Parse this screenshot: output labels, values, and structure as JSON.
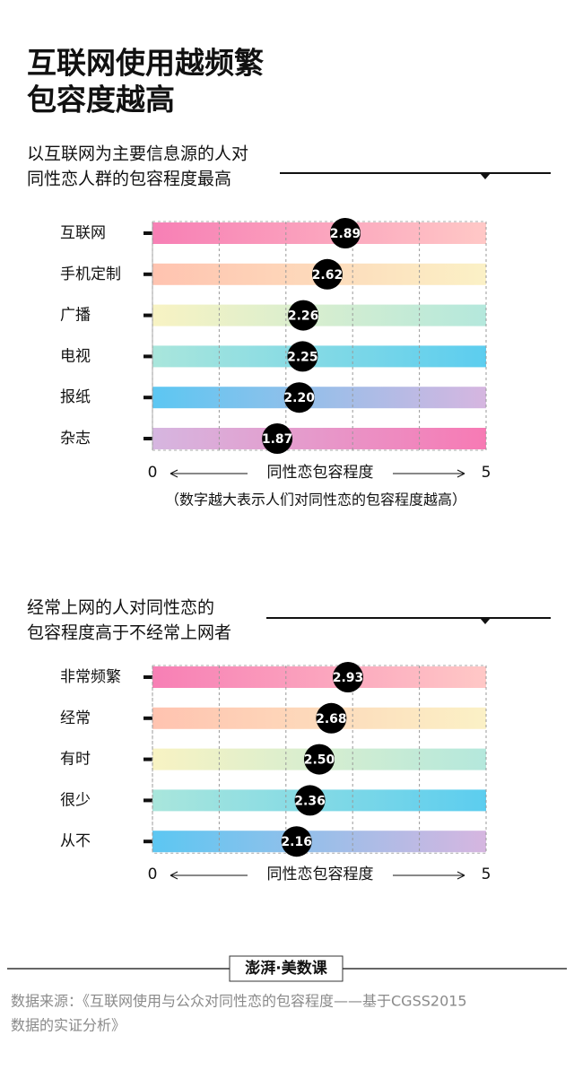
{
  "header": {
    "title_lines": [
      "互联网使用越频繁",
      "包容度越高"
    ]
  },
  "chart_data": [
    {
      "type": "bar",
      "subtitle_lines": [
        "以互联网为主要信息源的人对",
        "同性恋人群的包容程度最高"
      ],
      "categories": [
        "互联网",
        "手机定制",
        "广播",
        "电视",
        "报纸",
        "杂志"
      ],
      "values": [
        2.89,
        2.62,
        2.26,
        2.25,
        2.2,
        1.87
      ],
      "value_labels": [
        "2.89",
        "2.62",
        "2.26",
        "2.25",
        "2.20",
        "1.87"
      ],
      "bar_gradients": [
        [
          "#f77fb5",
          "#ffc8c6"
        ],
        [
          "#ffc3b0",
          "#fbf1c6"
        ],
        [
          "#f8f3c3",
          "#b4e8dc"
        ],
        [
          "#a9e6dc",
          "#5ccdef"
        ],
        [
          "#5cc7f2",
          "#d6b6e0"
        ],
        [
          "#d6b6e0",
          "#f77ab4"
        ]
      ],
      "xlim": [
        0,
        5
      ],
      "xticks": [
        0,
        5
      ],
      "xgrid": [
        0,
        1,
        2,
        3,
        4,
        5
      ],
      "xlabel": "同性恋包容程度",
      "note": "（数字越大表示人们对同性恋的包容程度越高）"
    },
    {
      "type": "bar",
      "subtitle_lines": [
        "经常上网的人对同性恋的",
        "包容程度高于不经常上网者"
      ],
      "categories": [
        "非常频繁",
        "经常",
        "有时",
        "很少",
        "从不"
      ],
      "values": [
        2.93,
        2.68,
        2.5,
        2.36,
        2.16
      ],
      "value_labels": [
        "2.93",
        "2.68",
        "2.50",
        "2.36",
        "2.16"
      ],
      "bar_gradients": [
        [
          "#f77fb5",
          "#ffc8c6"
        ],
        [
          "#ffc3b0",
          "#fbf1c6"
        ],
        [
          "#f8f3c3",
          "#b4e8dc"
        ],
        [
          "#a9e6dc",
          "#5ccdef"
        ],
        [
          "#5cc7f2",
          "#d6b6e0"
        ]
      ],
      "xlim": [
        0,
        5
      ],
      "xticks": [
        0,
        5
      ],
      "xgrid": [
        0,
        1,
        2,
        3,
        4,
        5
      ],
      "xlabel": "同性恋包容程度"
    }
  ],
  "footer": {
    "logo": "澎湃·美数课",
    "source_lines": [
      "数据来源：《互联网使用与公众对同性恋的包容程度——基于CGSS2015",
      "数据的实证分析》"
    ]
  }
}
